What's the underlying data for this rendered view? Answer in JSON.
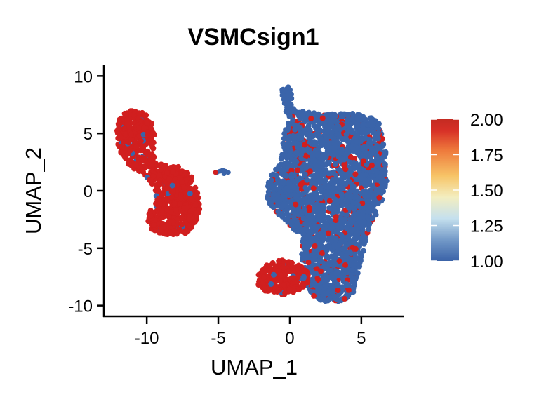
{
  "chart_data": {
    "type": "scatter",
    "title": "VSMCsign1",
    "xlabel": "UMAP_1",
    "ylabel": "UMAP_2",
    "xlim": [
      -13,
      8
    ],
    "ylim": [
      -11,
      11
    ],
    "x_ticks": [
      -10,
      -5,
      0,
      5
    ],
    "y_ticks": [
      10,
      5,
      0,
      -5,
      -10
    ],
    "x_tick_labels": [
      "-10",
      "-5",
      "0",
      "5"
    ],
    "y_tick_labels": [
      "10",
      "5",
      "0",
      "-5",
      "-10"
    ],
    "grid": false,
    "color_scale": {
      "min": 1.0,
      "max": 2.0,
      "ticks": [
        "2.00",
        "1.75",
        "1.50",
        "1.25",
        "1.00"
      ],
      "tick_values": [
        2.0,
        1.75,
        1.5,
        1.25,
        1.0
      ],
      "colors": [
        "#3b63a8",
        "#6f96c6",
        "#c5e0ee",
        "#f3eec0",
        "#f7c467",
        "#ee7a3c",
        "#d73027",
        "#c42b22"
      ],
      "legend_placement": "right"
    },
    "clusters": [
      {
        "region": "upper-left",
        "value": 2.0,
        "x_range": [
          -12,
          -6.3
        ],
        "y_range": [
          -3.8,
          7
        ]
      },
      {
        "region": "small-bridge",
        "value": 1.0,
        "x_range": [
          -5.2,
          -4.2
        ],
        "y_range": [
          1.3,
          1.9
        ]
      },
      {
        "region": "right-main",
        "value": 1.0,
        "mixed_value": 2.0,
        "x_range": [
          -2,
          6.8
        ],
        "y_range": [
          -9.6,
          9.2
        ]
      },
      {
        "region": "lower-right-small",
        "value": 2.0,
        "x_range": [
          -2.3,
          1.4
        ],
        "y_range": [
          -9.2,
          -6.1
        ]
      }
    ]
  }
}
